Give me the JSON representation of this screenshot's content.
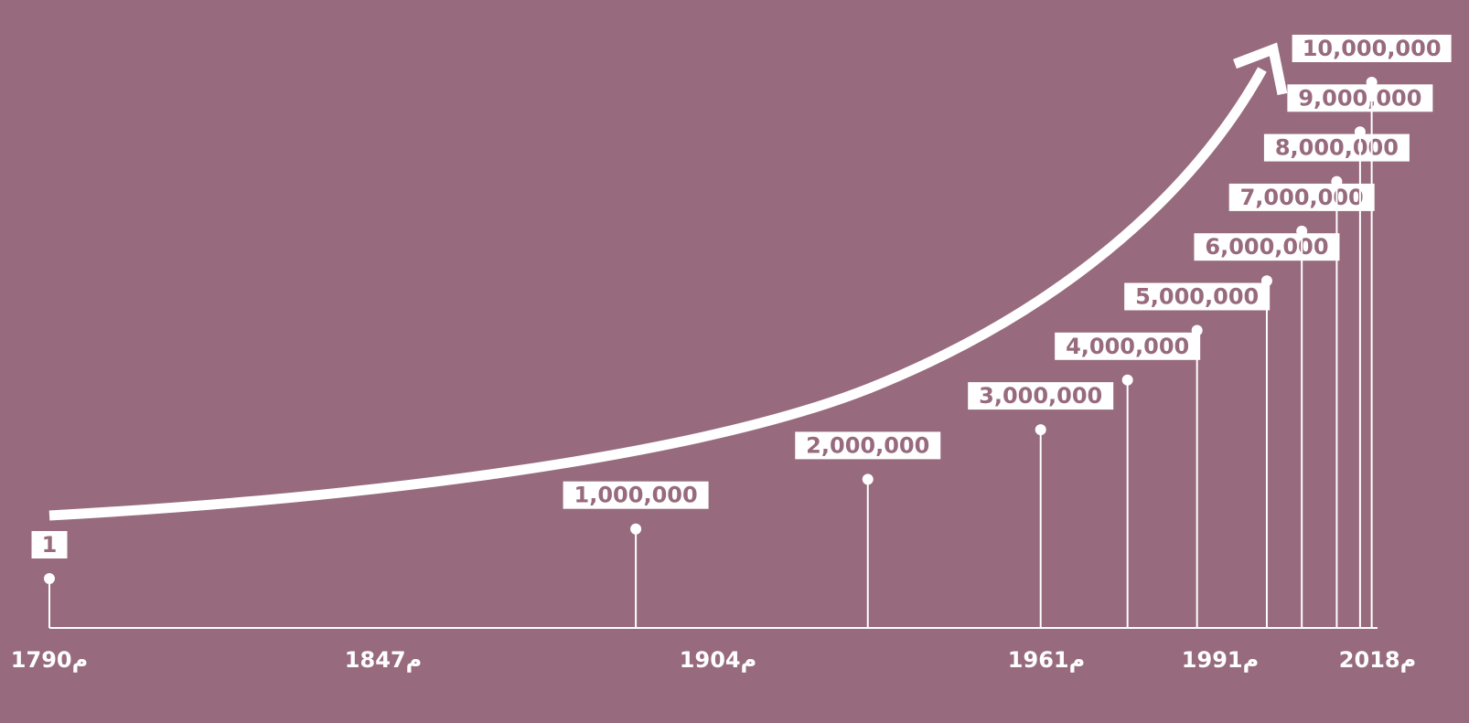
{
  "colors": {
    "background": "#976a7d",
    "foreground": "#ffffff",
    "label_text": "#976a7d"
  },
  "chart_data": {
    "type": "scatter",
    "title": "",
    "xlabel": "",
    "ylabel": "",
    "grid": false,
    "trend_arrow": true,
    "x_tick_labels": [
      "1790م",
      "1847م",
      "1904م",
      "1961م",
      "1991م",
      "2018م"
    ],
    "x_ticks": [
      1790,
      1847,
      1904,
      1961,
      1991,
      2018
    ],
    "xlim": [
      1790,
      2018
    ],
    "ylim": [
      0,
      10000000
    ],
    "points": [
      {
        "x": 1790,
        "y": 1,
        "label": "1"
      },
      {
        "x": 1890,
        "y": 1000000,
        "label": "1,000,000"
      },
      {
        "x": 1930,
        "y": 2000000,
        "label": "2,000,000"
      },
      {
        "x": 1960,
        "y": 3000000,
        "label": "3,000,000"
      },
      {
        "x": 1975,
        "y": 4000000,
        "label": "4,000,000"
      },
      {
        "x": 1987,
        "y": 5000000,
        "label": "5,000,000"
      },
      {
        "x": 1999,
        "y": 6000000,
        "label": "6,000,000"
      },
      {
        "x": 2005,
        "y": 7000000,
        "label": "7,000,000"
      },
      {
        "x": 2011,
        "y": 8000000,
        "label": "8,000,000"
      },
      {
        "x": 2015,
        "y": 9000000,
        "label": "9,000,000"
      },
      {
        "x": 2017,
        "y": 10000000,
        "label": "10,000,000"
      }
    ]
  }
}
